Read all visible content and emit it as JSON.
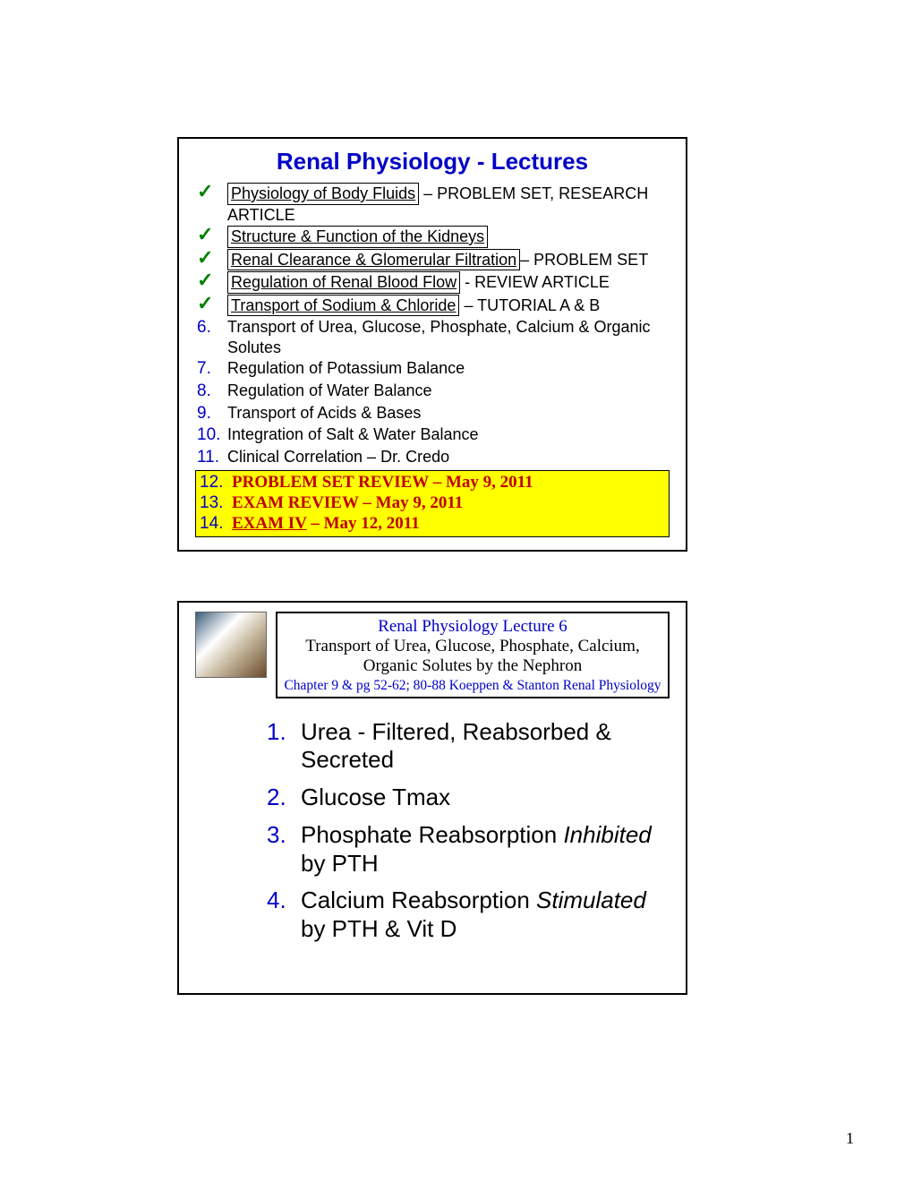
{
  "page": {
    "number": "1"
  },
  "colors": {
    "title_blue": "#0000c8",
    "check_green": "#008000",
    "highlight_bg": "#ffff00",
    "highlight_text": "#c00000",
    "body_text": "#000000",
    "background": "#ffffff"
  },
  "slide1": {
    "title": "Renal Physiology - Lectures",
    "lectures": [
      {
        "marker": "check",
        "boxed_text": "Physiology of Body Fluids",
        "suffix": "– PROBLEM SET, RESEARCH ARTICLE"
      },
      {
        "marker": "check",
        "boxed_text": "Structure & Function of the Kidneys",
        "suffix": ""
      },
      {
        "marker": "check",
        "boxed_text": "Renal Clearance & Glomerular Filtration",
        "suffix": "– PROBLEM SET"
      },
      {
        "marker": "check",
        "boxed_text": "Regulation of Renal Blood Flow",
        "suffix": "- REVIEW ARTICLE"
      },
      {
        "marker": "check",
        "boxed_text": "Transport of Sodium & Chloride",
        "suffix": "– TUTORIAL A & B"
      },
      {
        "marker": "6.",
        "text": "Transport of Urea, Glucose, Phosphate, Calcium & Organic Solutes"
      },
      {
        "marker": "7.",
        "text": "Regulation of Potassium Balance"
      },
      {
        "marker": "8.",
        "text": "Regulation of Water Balance"
      },
      {
        "marker": "9.",
        "text": "Transport of Acids & Bases"
      },
      {
        "marker": "10.",
        "text": "Integration of Salt & Water Balance"
      },
      {
        "marker": "11.",
        "text": "Clinical Correlation – Dr. Credo"
      }
    ],
    "highlight": [
      {
        "num": "12.",
        "text": "PROBLEM SET REVIEW – May 9, 2011"
      },
      {
        "num": "13.",
        "text": "EXAM REVIEW – May 9, 2011"
      },
      {
        "num": "14.",
        "text_a": "EXAM IV",
        "text_b": " – May 12, 2011"
      }
    ]
  },
  "slide2": {
    "header": {
      "line1": "Renal Physiology Lecture 6",
      "line2": "Transport of Urea, Glucose, Phosphate, Calcium, Organic Solutes by the Nephron",
      "line3": "Chapter 9 & pg 52-62; 80-88 Koeppen & Stanton Renal Physiology"
    },
    "topics": [
      {
        "num": "1.",
        "text_a": "Urea - Filtered, Reabsorbed & Secreted"
      },
      {
        "num": "2.",
        "text_a": "Glucose Tmax"
      },
      {
        "num": "3.",
        "text_a": "Phosphate Reabsorption ",
        "italic": "Inhibited",
        "text_b": " by PTH"
      },
      {
        "num": "4.",
        "text_a": "Calcium Reabsorption ",
        "italic": "Stimulated",
        "text_b": " by PTH & Vit D"
      }
    ]
  }
}
